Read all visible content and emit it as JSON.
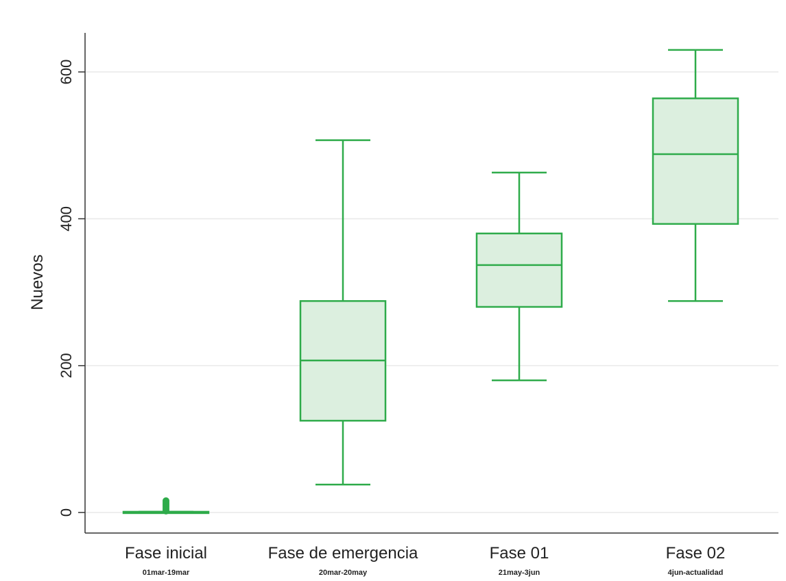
{
  "chart_data": {
    "type": "box",
    "ylabel": "Nuevos",
    "ylim": [
      -30,
      655
    ],
    "yticks": [
      0,
      200,
      400,
      600
    ],
    "grid": true,
    "categories": [
      {
        "label": "Fase inicial",
        "sublabel": "01mar-19mar"
      },
      {
        "label": "Fase de emergencia",
        "sublabel": "20mar-20may"
      },
      {
        "label": "Fase 01",
        "sublabel": "21may-3jun"
      },
      {
        "label": "Fase 02",
        "sublabel": "4jun-actualidad"
      }
    ],
    "boxes": [
      {
        "min": 0,
        "q1": 0,
        "median": 0,
        "q3": 1,
        "max": 1,
        "outliers": [
          2,
          4,
          6,
          8,
          10,
          12,
          14,
          16
        ]
      },
      {
        "min": 38,
        "q1": 125,
        "median": 207,
        "q3": 288,
        "max": 507,
        "outliers": []
      },
      {
        "min": 180,
        "q1": 280,
        "median": 337,
        "q3": 380,
        "max": 463,
        "outliers": []
      },
      {
        "min": 288,
        "q1": 393,
        "median": 488,
        "q3": 564,
        "max": 630,
        "outliers": []
      }
    ],
    "colors": {
      "stroke": "#2eab4a",
      "fill": "#dcefdf",
      "grid": "#e9e9e9",
      "axis": "#333333"
    }
  }
}
